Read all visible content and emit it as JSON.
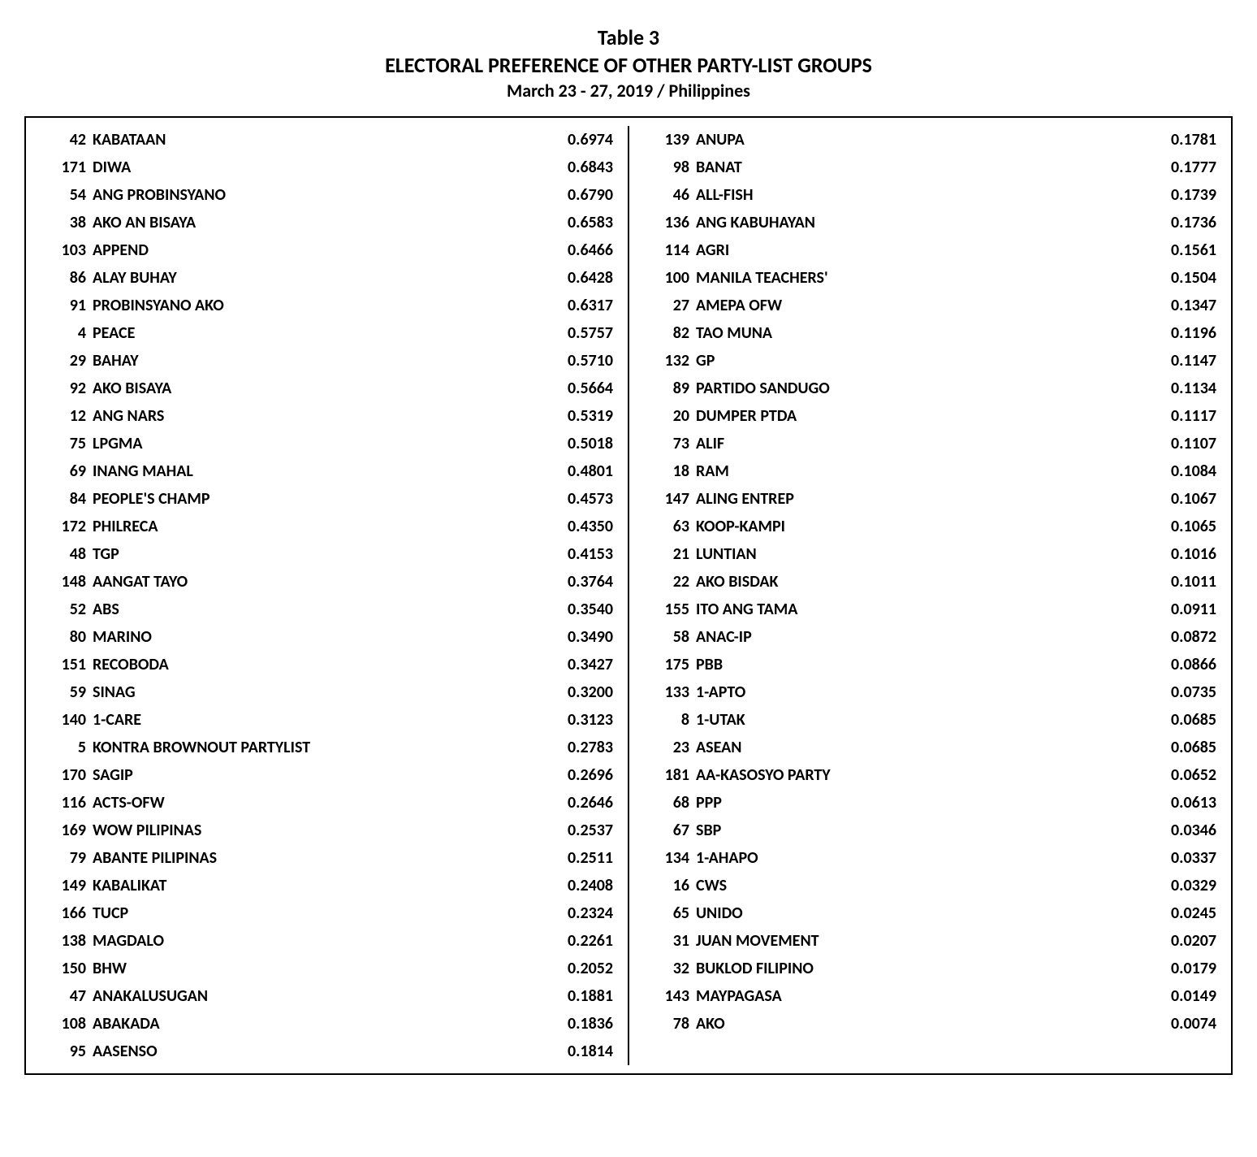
{
  "header": {
    "table_label": "Table 3",
    "title": "ELECTORAL PREFERENCE OF OTHER PARTY-LIST GROUPS",
    "subtitle": "March 23 - 27, 2019 / Philippines"
  },
  "style": {
    "font_family": "Calibri",
    "title_fontsize": 26,
    "subtitle_fontsize": 22,
    "row_fontsize": 20,
    "row_fontweight": 700,
    "line_height": 1.7,
    "border_color": "#000000",
    "border_width": 2.5,
    "background_color": "#ffffff",
    "text_color": "#000000",
    "num_col_width": 56,
    "val_col_width": 90
  },
  "columns": [
    "number",
    "name",
    "value"
  ],
  "left": [
    {
      "num": "42",
      "name": "KABATAAN",
      "val": "0.6974"
    },
    {
      "num": "171",
      "name": "DIWA",
      "val": "0.6843"
    },
    {
      "num": "54",
      "name": "ANG PROBINSYANO",
      "val": "0.6790"
    },
    {
      "num": "38",
      "name": "AKO AN BISAYA",
      "val": "0.6583"
    },
    {
      "num": "103",
      "name": "APPEND",
      "val": "0.6466"
    },
    {
      "num": "86",
      "name": "ALAY BUHAY",
      "val": "0.6428"
    },
    {
      "num": "91",
      "name": "PROBINSYANO AKO",
      "val": "0.6317"
    },
    {
      "num": "4",
      "name": "PEACE",
      "val": "0.5757"
    },
    {
      "num": "29",
      "name": "BAHAY",
      "val": "0.5710"
    },
    {
      "num": "92",
      "name": "AKO BISAYA",
      "val": "0.5664"
    },
    {
      "num": "12",
      "name": "ANG NARS",
      "val": "0.5319"
    },
    {
      "num": "75",
      "name": "LPGMA",
      "val": "0.5018"
    },
    {
      "num": "69",
      "name": "INANG MAHAL",
      "val": "0.4801"
    },
    {
      "num": "84",
      "name": "PEOPLE'S CHAMP",
      "val": "0.4573"
    },
    {
      "num": "172",
      "name": "PHILRECA",
      "val": "0.4350"
    },
    {
      "num": "48",
      "name": "TGP",
      "val": "0.4153"
    },
    {
      "num": "148",
      "name": "AANGAT TAYO",
      "val": "0.3764"
    },
    {
      "num": "52",
      "name": "ABS",
      "val": "0.3540"
    },
    {
      "num": "80",
      "name": "MARINO",
      "val": "0.3490"
    },
    {
      "num": "151",
      "name": "RECOBODA",
      "val": "0.3427"
    },
    {
      "num": "59",
      "name": "SINAG",
      "val": "0.3200"
    },
    {
      "num": "140",
      "name": "1-CARE",
      "val": "0.3123"
    },
    {
      "num": "5",
      "name": "KONTRA BROWNOUT PARTYLIST",
      "val": "0.2783"
    },
    {
      "num": "170",
      "name": "SAGIP",
      "val": "0.2696"
    },
    {
      "num": "116",
      "name": "ACTS-OFW",
      "val": "0.2646"
    },
    {
      "num": "169",
      "name": "WOW PILIPINAS",
      "val": "0.2537"
    },
    {
      "num": "79",
      "name": "ABANTE PILIPINAS",
      "val": "0.2511"
    },
    {
      "num": "149",
      "name": "KABALIKAT",
      "val": "0.2408"
    },
    {
      "num": "166",
      "name": "TUCP",
      "val": "0.2324"
    },
    {
      "num": "138",
      "name": "MAGDALO",
      "val": "0.2261"
    },
    {
      "num": "150",
      "name": "BHW",
      "val": "0.2052"
    },
    {
      "num": "47",
      "name": "ANAKALUSUGAN",
      "val": "0.1881"
    },
    {
      "num": "108",
      "name": "ABAKADA",
      "val": "0.1836"
    },
    {
      "num": "95",
      "name": "AASENSO",
      "val": "0.1814"
    }
  ],
  "right": [
    {
      "num": "139",
      "name": "ANUPA",
      "val": "0.1781"
    },
    {
      "num": "98",
      "name": "BANAT",
      "val": "0.1777"
    },
    {
      "num": "46",
      "name": "ALL-FISH",
      "val": "0.1739"
    },
    {
      "num": "136",
      "name": "ANG KABUHAYAN",
      "val": "0.1736"
    },
    {
      "num": "114",
      "name": "AGRI",
      "val": "0.1561"
    },
    {
      "num": "100",
      "name": "MANILA TEACHERS'",
      "val": "0.1504"
    },
    {
      "num": "27",
      "name": "AMEPA OFW",
      "val": "0.1347"
    },
    {
      "num": "82",
      "name": "TAO MUNA",
      "val": "0.1196"
    },
    {
      "num": "132",
      "name": "GP",
      "val": "0.1147"
    },
    {
      "num": "89",
      "name": "PARTIDO SANDUGO",
      "val": "0.1134"
    },
    {
      "num": "20",
      "name": "DUMPER PTDA",
      "val": "0.1117"
    },
    {
      "num": "73",
      "name": "ALIF",
      "val": "0.1107"
    },
    {
      "num": "18",
      "name": "RAM",
      "val": "0.1084"
    },
    {
      "num": "147",
      "name": "ALING ENTREP",
      "val": "0.1067"
    },
    {
      "num": "63",
      "name": "KOOP-KAMPI",
      "val": "0.1065"
    },
    {
      "num": "21",
      "name": "LUNTIAN",
      "val": "0.1016"
    },
    {
      "num": "22",
      "name": "AKO BISDAK",
      "val": "0.1011"
    },
    {
      "num": "155",
      "name": "ITO ANG TAMA",
      "val": "0.0911"
    },
    {
      "num": "58",
      "name": "ANAC-IP",
      "val": "0.0872"
    },
    {
      "num": "175",
      "name": "PBB",
      "val": "0.0866"
    },
    {
      "num": "133",
      "name": "1-APTO",
      "val": "0.0735"
    },
    {
      "num": "8",
      "name": "1-UTAK",
      "val": "0.0685"
    },
    {
      "num": "23",
      "name": "ASEAN",
      "val": "0.0685"
    },
    {
      "num": "181",
      "name": "AA-KASOSYO PARTY",
      "val": "0.0652"
    },
    {
      "num": "68",
      "name": "PPP",
      "val": "0.0613"
    },
    {
      "num": "67",
      "name": "SBP",
      "val": "0.0346"
    },
    {
      "num": "134",
      "name": "1-AHAPO",
      "val": "0.0337"
    },
    {
      "num": "16",
      "name": "CWS",
      "val": "0.0329"
    },
    {
      "num": "65",
      "name": "UNIDO",
      "val": "0.0245"
    },
    {
      "num": "31",
      "name": "JUAN MOVEMENT",
      "val": "0.0207"
    },
    {
      "num": "32",
      "name": "BUKLOD FILIPINO",
      "val": "0.0179"
    },
    {
      "num": "143",
      "name": "MAYPAGASA",
      "val": "0.0149"
    },
    {
      "num": "78",
      "name": "AKO",
      "val": "0.0074"
    }
  ]
}
